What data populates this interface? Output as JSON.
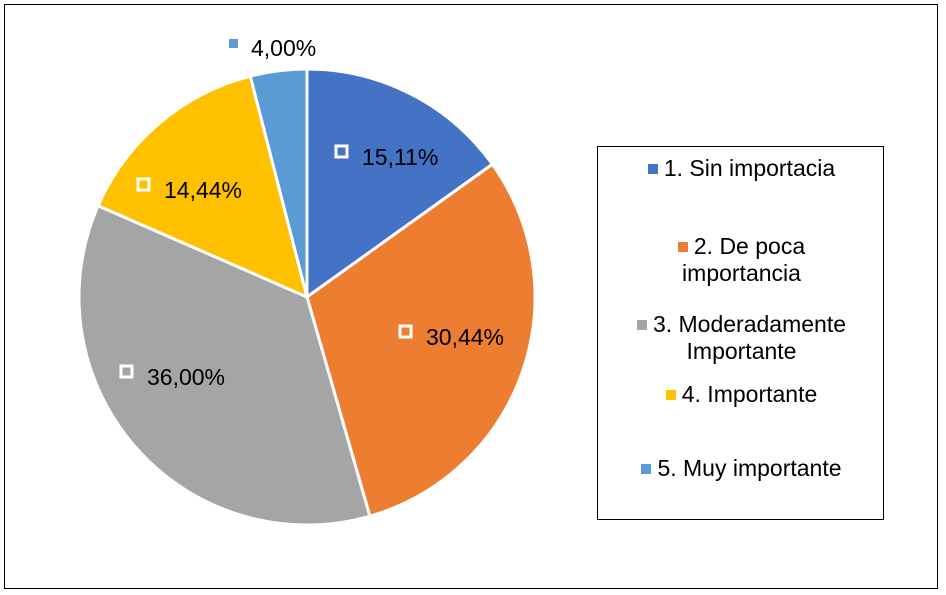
{
  "chart_data": {
    "type": "pie",
    "title": "",
    "categories": [
      "1. Sin importacia",
      "2. De poca importancia",
      "3. Moderadamente Importante",
      "4. Importante",
      "5. Muy importante"
    ],
    "legend_labels": [
      "1. Sin importacia",
      "2. De poca\nimportancia",
      "3. Moderadamente\n   Importante",
      "4. Importante",
      "5. Muy importante"
    ],
    "values": [
      15.11,
      30.44,
      36.0,
      14.44,
      4.0
    ],
    "data_labels": [
      "15,11%",
      "30,44%",
      "36,00%",
      "14,44%",
      "4,00%"
    ],
    "colors": [
      "#4472C4",
      "#ED7D31",
      "#A5A5A5",
      "#FFC000",
      "#5B9BD5"
    ],
    "legend_position": "right"
  }
}
